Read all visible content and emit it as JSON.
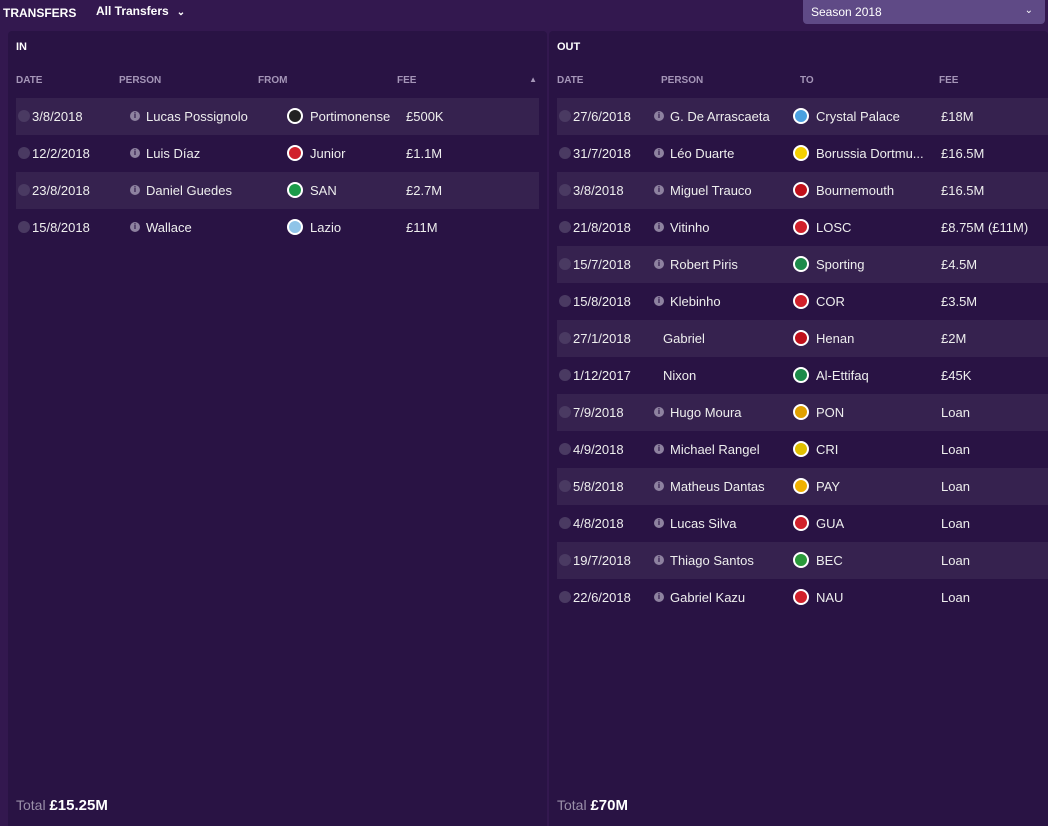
{
  "header": {
    "title": "TRANSFERS",
    "filter": "All Transfers",
    "season": "Season 2018"
  },
  "in": {
    "title": "IN",
    "columns": [
      "DATE",
      "PERSON",
      "FROM",
      "FEE"
    ],
    "rows": [
      {
        "date": "3/8/2018",
        "person": "Lucas Possignolo",
        "club": "Portimonense",
        "fee": "£500K",
        "info": true,
        "crest": "#222222"
      },
      {
        "date": "12/2/2018",
        "person": "Luis Díaz",
        "club": "Junior",
        "fee": "£1.1M",
        "info": true,
        "crest": "#d0202a"
      },
      {
        "date": "23/8/2018",
        "person": "Daniel Guedes",
        "club": "SAN",
        "fee": "£2.7M",
        "info": true,
        "crest": "#1c9b4a"
      },
      {
        "date": "15/8/2018",
        "person": "Wallace",
        "club": "Lazio",
        "fee": "£11M",
        "info": true,
        "crest": "#8fc4e8"
      }
    ],
    "total_label": "Total",
    "total": "£15.25M"
  },
  "out": {
    "title": "OUT",
    "columns": [
      "DATE",
      "PERSON",
      "TO",
      "FEE"
    ],
    "rows": [
      {
        "date": "27/6/2018",
        "person": "G. De Arrascaeta",
        "club": "Crystal Palace",
        "fee": "£18M",
        "info": true,
        "crest": "#4aa0e0"
      },
      {
        "date": "31/7/2018",
        "person": "Léo Duarte",
        "club": "Borussia Dortmu...",
        "fee": "£16.5M",
        "info": true,
        "crest": "#f5d000"
      },
      {
        "date": "3/8/2018",
        "person": "Miguel Trauco",
        "club": "Bournemouth",
        "fee": "£16.5M",
        "info": true,
        "crest": "#c0101a"
      },
      {
        "date": "21/8/2018",
        "person": "Vitinho",
        "club": "LOSC",
        "fee": "£8.75M (£11M)",
        "info": true,
        "crest": "#d0202a"
      },
      {
        "date": "15/7/2018",
        "person": "Robert Piris",
        "club": "Sporting",
        "fee": "£4.5M",
        "info": true,
        "crest": "#1c8a4a"
      },
      {
        "date": "15/8/2018",
        "person": "Klebinho",
        "club": "COR",
        "fee": "£3.5M",
        "info": true,
        "crest": "#d0202a"
      },
      {
        "date": "27/1/2018",
        "person": "Gabriel",
        "club": "Henan",
        "fee": "£2M",
        "info": false,
        "crest": "#c0101a"
      },
      {
        "date": "1/12/2017",
        "person": "Nixon",
        "club": "Al-Ettifaq",
        "fee": "£45K",
        "info": false,
        "crest": "#1c8a4a"
      },
      {
        "date": "7/9/2018",
        "person": "Hugo Moura",
        "club": "PON",
        "fee": "Loan",
        "info": true,
        "crest": "#e0a000"
      },
      {
        "date": "4/9/2018",
        "person": "Michael Rangel",
        "club": "CRI",
        "fee": "Loan",
        "info": true,
        "crest": "#e0c000"
      },
      {
        "date": "5/8/2018",
        "person": "Matheus Dantas",
        "club": "PAY",
        "fee": "Loan",
        "info": true,
        "crest": "#f0b000"
      },
      {
        "date": "4/8/2018",
        "person": "Lucas Silva",
        "club": "GUA",
        "fee": "Loan",
        "info": true,
        "crest": "#d0202a"
      },
      {
        "date": "19/7/2018",
        "person": "Thiago Santos",
        "club": "BEC",
        "fee": "Loan",
        "info": true,
        "crest": "#2a9a3a"
      },
      {
        "date": "22/6/2018",
        "person": "Gabriel Kazu",
        "club": "NAU",
        "fee": "Loan",
        "info": true,
        "crest": "#d0202a"
      }
    ],
    "total_label": "Total",
    "total": "£70M"
  }
}
